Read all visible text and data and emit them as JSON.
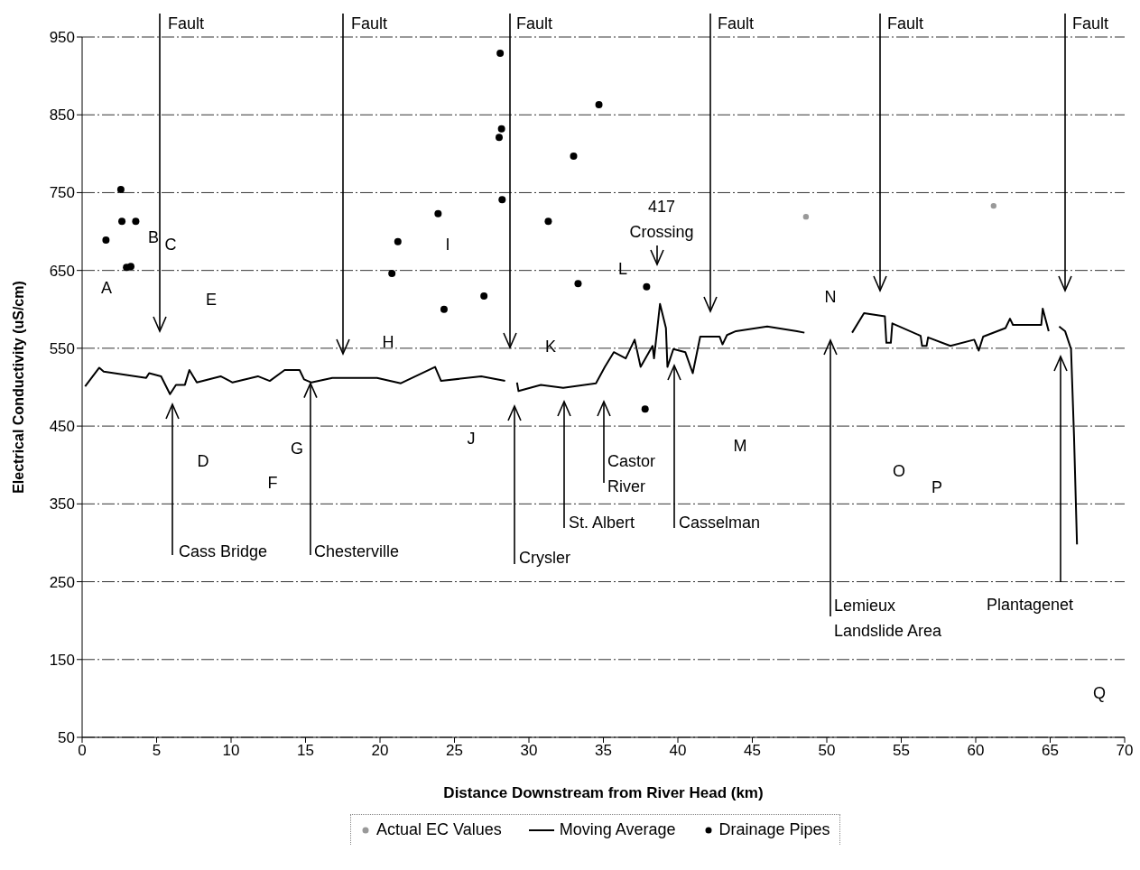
{
  "chart_data": {
    "type": "line",
    "xlabel": "Distance Downstream from River Head (km)",
    "ylabel": "Electrical Conductivity (uS/cm)",
    "xlim": [
      0,
      70
    ],
    "xticks": [
      0,
      5,
      10,
      15,
      20,
      25,
      30,
      35,
      40,
      45,
      50,
      55,
      60,
      65,
      70
    ],
    "ylim": [
      50,
      950
    ],
    "yticks": [
      50,
      150,
      250,
      350,
      450,
      550,
      650,
      750,
      850,
      950
    ],
    "grid": "y",
    "legend": "bottom",
    "line_style": "solid",
    "series": [
      {
        "name": "Actual EC Values",
        "type": "scatter",
        "color": "#999999",
        "x": [
          48.6,
          61.2
        ],
        "values": [
          719,
          733
        ]
      },
      {
        "name": "Moving Average",
        "color": "#000000",
        "x": [
          0.2,
          1.15,
          1.45,
          4.3,
          4.5,
          5.3,
          5.9,
          6.3,
          6.9,
          7.2,
          7.7,
          9.3,
          10.1,
          11.8,
          12.6,
          13.6,
          14.6,
          14.9,
          15.4,
          16.8,
          19.8,
          21.4,
          23.7,
          24.1,
          26.8,
          28.4,
          28.8,
          29.2,
          29.3,
          30.8,
          32.3,
          34.5,
          35.1,
          35.7,
          36.5,
          37.1,
          37.5,
          38.3,
          38.4,
          38.8,
          39.2,
          39.3,
          39.7,
          40.5,
          41.0,
          41.5,
          42.8,
          43.0,
          43.3,
          43.9,
          46.0,
          48.0,
          48.5,
          49.5,
          51.7,
          52.5,
          53.9,
          54.0,
          54.3,
          54.4,
          56.3,
          56.4,
          56.7,
          56.8,
          58.3,
          59.9,
          60.2,
          60.5,
          62.0,
          62.3,
          62.5,
          64.4,
          64.5,
          64.9,
          65.2,
          65.6,
          66.0,
          66.4,
          66.6,
          66.8
        ],
        "values": [
          501,
          525,
          520,
          512,
          518,
          514,
          491,
          503,
          503,
          522,
          506,
          514,
          506,
          514,
          508,
          522,
          522,
          510,
          506,
          512,
          512,
          505,
          526,
          508,
          514,
          508,
          null,
          506,
          495,
          503,
          499,
          505,
          526,
          545,
          537,
          561,
          526,
          553,
          537,
          607,
          576,
          526,
          549,
          545,
          518,
          565,
          565,
          555,
          567,
          572,
          578,
          572,
          570,
          null,
          570,
          595,
          591,
          557,
          557,
          582,
          566,
          553,
          553,
          564,
          553,
          561,
          547,
          565,
          576,
          588,
          580,
          580,
          601,
          572,
          null,
          578,
          572,
          549,
          437,
          298
        ]
      },
      {
        "name": "Drainage Pipes",
        "type": "scatter",
        "color": "#000000",
        "x": [
          1.6,
          2.6,
          2.67,
          3.6,
          2.98,
          3.27,
          20.8,
          21.2,
          23.9,
          24.3,
          26.98,
          28.07,
          28.16,
          28.0,
          28.2,
          31.3,
          33.0,
          33.3,
          34.7,
          37.9,
          37.8
        ],
        "values": [
          689,
          754,
          713,
          713,
          654,
          655,
          646,
          687,
          723,
          600,
          617,
          929,
          832,
          821,
          741,
          713,
          797,
          633,
          863,
          629,
          472
        ]
      }
    ],
    "annotations": [
      "Fault",
      "Fault",
      "Fault",
      "Fault",
      "Fault",
      "Fault",
      "417\nCrossing",
      "Cass Bridge",
      {
        "text": "Chesterville",
        "x": 15.33,
        "y": 505
      },
      "Crysler",
      "St. Albert",
      "Castor\nRiver",
      "Casselman",
      "Lemieux\nLandslide Area",
      "Plantagenet",
      "A",
      "B",
      "C",
      "D",
      "E",
      "F",
      "G",
      "H",
      "I",
      "J",
      "K",
      "L",
      "M",
      "N",
      "O",
      "P",
      "Q"
    ]
  }
}
